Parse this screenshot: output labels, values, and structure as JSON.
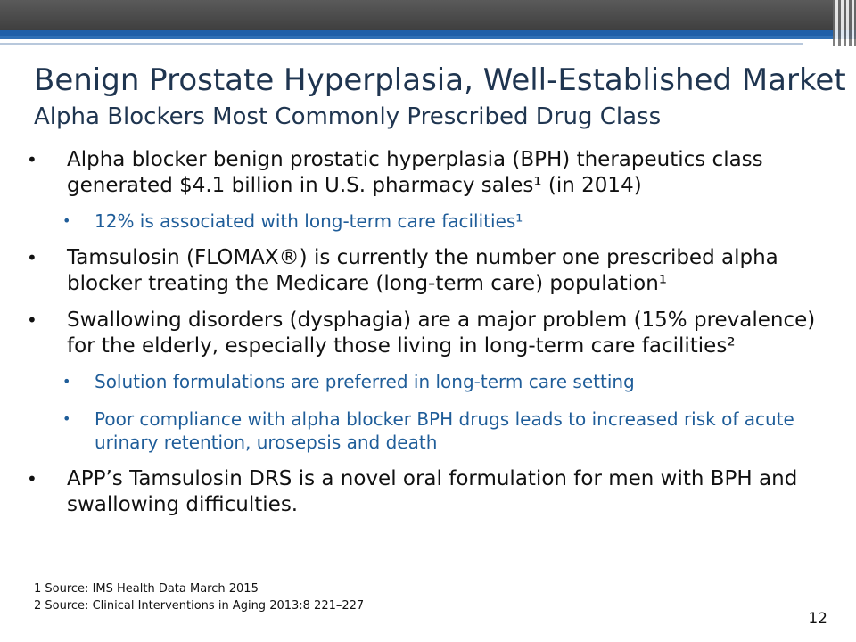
{
  "slide": {
    "title": "Benign Prostate Hyperplasia, Well-Established Market",
    "subtitle": "Alpha Blockers Most Commonly Prescribed Drug Class",
    "bullets": [
      {
        "level": 1,
        "text": "Alpha blocker benign prostatic hyperplasia (BPH) therapeutics class generated $4.1 billion in U.S. pharmacy sales¹ (in 2014)"
      },
      {
        "level": 2,
        "text": "12% is associated with long-term care facilities¹"
      },
      {
        "level": 1,
        "text": "Tamsulosin (FLOMAX®) is currently the number one prescribed alpha blocker treating the Medicare (long-term care) population¹"
      },
      {
        "level": 1,
        "text": "Swallowing disorders (dysphagia) are a major problem (15% prevalence) for the elderly, especially those living in long-term care facilities²"
      },
      {
        "level": 2,
        "text": "Solution formulations are preferred in long-term care setting"
      },
      {
        "level": 2,
        "text": "Poor compliance with alpha blocker BPH drugs leads to increased risk of acute urinary retention, urosepsis and death"
      },
      {
        "level": 1,
        "text": "APP’s Tamsulosin DRS is a novel oral formulation for men with BPH and swallowing difficulties."
      }
    ],
    "bullet_glyph": "•",
    "footnotes": [
      "1 Source: IMS Health Data March 2015",
      "2 Source: Clinical Interventions in Aging 2013:8 221–227"
    ],
    "page_number": "12",
    "colors": {
      "title": "#1f3550",
      "sub_bullet": "#1f5d99",
      "header_band": "#4a4a4a",
      "header_accent": "#1f5fa8"
    }
  }
}
